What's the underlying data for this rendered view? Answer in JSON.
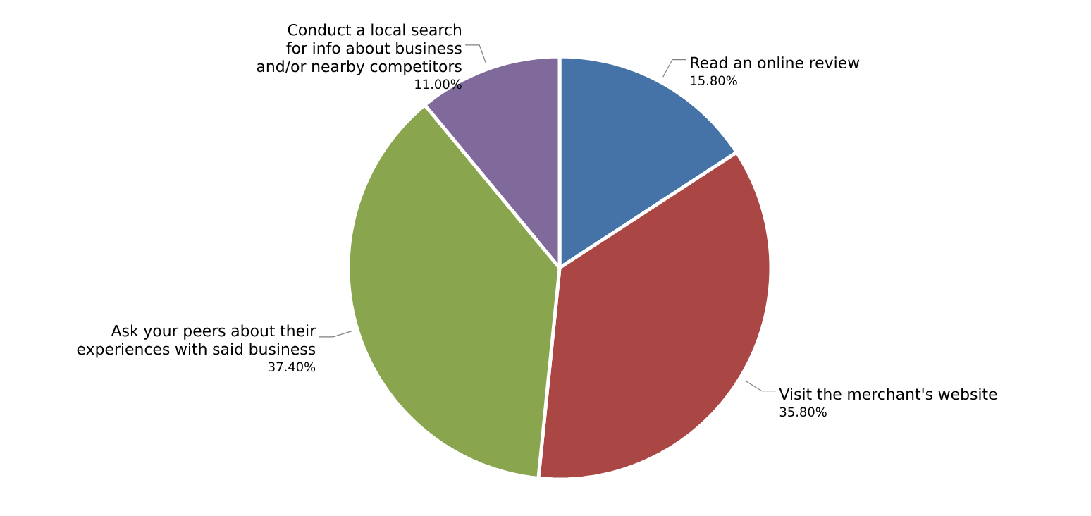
{
  "chart_data": {
    "type": "pie",
    "categories": [
      "Read an online review",
      "Visit the merchant's website",
      "Ask your peers about their experiences with said business",
      "Conduct a local search for info about business and/or nearby competitors"
    ],
    "values": [
      15.8,
      35.8,
      37.4,
      11.0
    ],
    "value_labels": [
      "15.80%",
      "35.80%",
      "37.40%",
      "11.00%"
    ],
    "colors": [
      "#4572a7",
      "#aa4643",
      "#89a54e",
      "#80699b"
    ]
  }
}
